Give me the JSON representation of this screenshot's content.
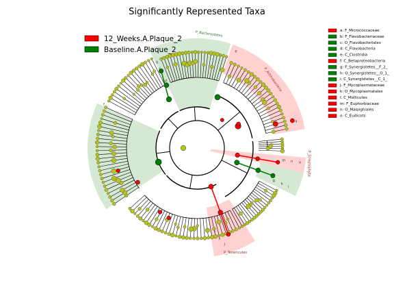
{
  "chart_data": {
    "type": "cladogram",
    "title": "Significantly Represented Taxa",
    "legend_top_left": [
      {
        "name": "12_Weeks.A.Plaque_2",
        "color": "#ff0000"
      },
      {
        "name": "Baseline.A.Plaque_2",
        "color": "#008000"
      }
    ],
    "legend_right": [
      {
        "label": "a: F_Micrococcaceae",
        "group": "12_Weeks.A.Plaque_2"
      },
      {
        "label": "b: F_Flavobacteriaceae",
        "group": "Baseline.A.Plaque_2"
      },
      {
        "label": "c: O_Flavobacteriales",
        "group": "Baseline.A.Plaque_2"
      },
      {
        "label": "d: C_Flavobacteria",
        "group": "Baseline.A.Plaque_2"
      },
      {
        "label": "e: C_Clostridia",
        "group": "Baseline.A.Plaque_2"
      },
      {
        "label": "f: C_Betaproteobacteria",
        "group": "12_Weeks.A.Plaque_2"
      },
      {
        "label": "g: F_Synergistetes__F_2_",
        "group": "Baseline.A.Plaque_2"
      },
      {
        "label": "h: O_Synergistetes__O_1_",
        "group": "Baseline.A.Plaque_2"
      },
      {
        "label": "i: C_Synergistetes__C_1_",
        "group": "Baseline.A.Plaque_2"
      },
      {
        "label": "j: F_Mycoplasmataceae",
        "group": "12_Weeks.A.Plaque_2"
      },
      {
        "label": "k: O_Mycoplasmatales",
        "group": "12_Weeks.A.Plaque_2"
      },
      {
        "label": "l: C_Mollicutes",
        "group": "12_Weeks.A.Plaque_2"
      },
      {
        "label": "m: F_Euphorbiaceae",
        "group": "12_Weeks.A.Plaque_2"
      },
      {
        "label": "n: O_Malpighiales",
        "group": "12_Weeks.A.Plaque_2"
      },
      {
        "label": "o: C_Eudicots",
        "group": "12_Weeks.A.Plaque_2"
      }
    ],
    "phylum_labels": [
      {
        "label": "P_Bacteroidetes",
        "group": "Baseline.A.Plaque_2"
      },
      {
        "label": "P_Actinobacteria",
        "group": "12_Weeks.A.Plaque_2"
      },
      {
        "label": "P_Streptophyta",
        "group": "12_Weeks.A.Plaque_2"
      },
      {
        "label": "P_Tenericutes",
        "group": "12_Weeks.A.Plaque_2"
      }
    ],
    "wedge_letters": [
      "a",
      "b",
      "c",
      "d",
      "e",
      "f",
      "g",
      "h",
      "i",
      "j",
      "k",
      "l",
      "m",
      "n",
      "o"
    ],
    "colors": {
      "group1": "#ff0000",
      "group2": "#008000",
      "neutral_node": "#b5c21a",
      "group1_shade": "#ffcccc",
      "group2_shade": "#cfe6cf"
    }
  }
}
